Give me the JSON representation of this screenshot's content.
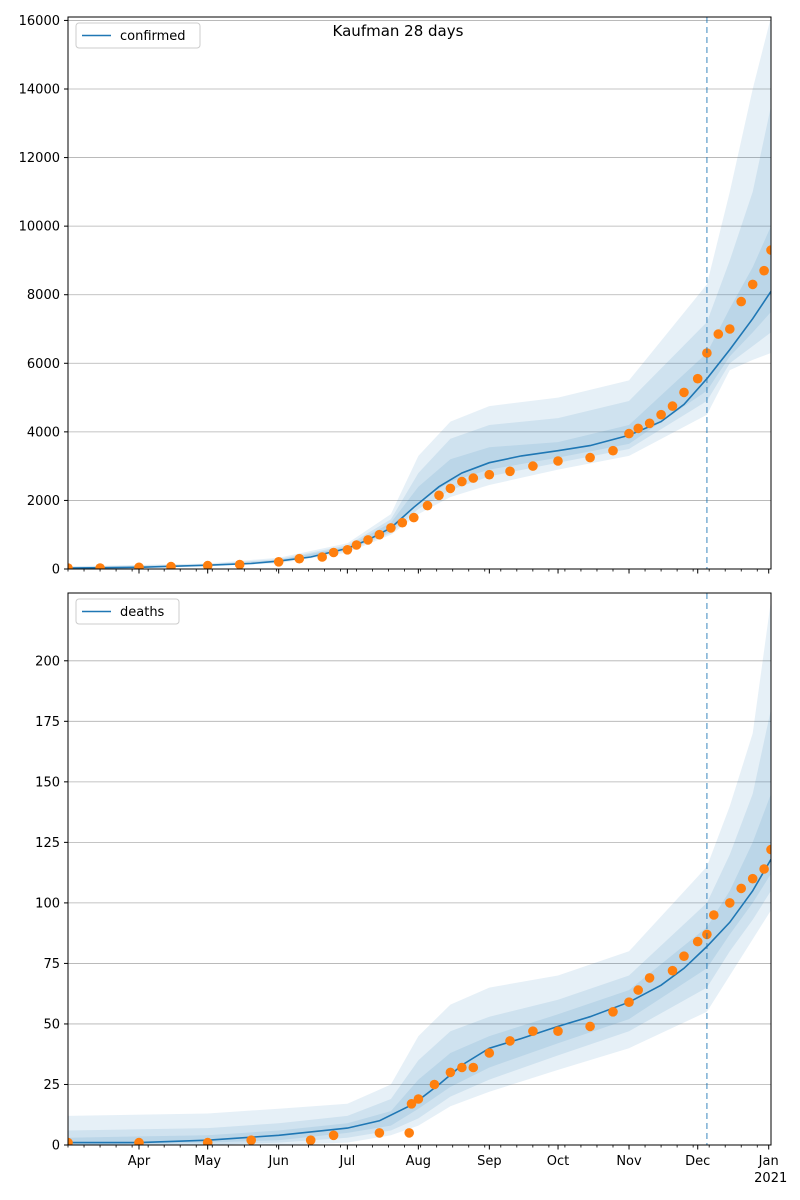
{
  "title": "Kaufman 28 days",
  "colors": {
    "model_line": "#1f77b4",
    "observed": "#ff7f0e",
    "band": "#1f77b4",
    "forecast_divider": "#1f77b4"
  },
  "forecast_start": "2020-12-05",
  "x_axis": {
    "range": [
      "2020-03-01",
      "2021-01-02"
    ],
    "month_ticks": [
      {
        "label": "Apr",
        "date": "2020-04-01"
      },
      {
        "label": "May",
        "date": "2020-05-01"
      },
      {
        "label": "Jun",
        "date": "2020-06-01"
      },
      {
        "label": "Jul",
        "date": "2020-07-01"
      },
      {
        "label": "Aug",
        "date": "2020-08-01"
      },
      {
        "label": "Sep",
        "date": "2020-09-01"
      },
      {
        "label": "Oct",
        "date": "2020-10-01"
      },
      {
        "label": "Nov",
        "date": "2020-11-01"
      },
      {
        "label": "Dec",
        "date": "2020-12-01"
      },
      {
        "label": "Jan",
        "date": "2021-01-01"
      }
    ],
    "year_label": "2021"
  },
  "chart_data": [
    {
      "type": "line",
      "legend": "confirmed",
      "legend_position": "top-left",
      "grid": true,
      "ylim": [
        0,
        16100
      ],
      "yticks": [
        0,
        2000,
        4000,
        6000,
        8000,
        10000,
        12000,
        14000,
        16000
      ],
      "model": {
        "x": [
          "2020-03-01",
          "2020-04-01",
          "2020-05-01",
          "2020-05-20",
          "2020-06-01",
          "2020-06-15",
          "2020-07-01",
          "2020-07-10",
          "2020-07-20",
          "2020-07-30",
          "2020-08-10",
          "2020-08-20",
          "2020-09-01",
          "2020-09-15",
          "2020-10-01",
          "2020-10-15",
          "2020-11-01",
          "2020-11-15",
          "2020-11-25",
          "2020-12-05",
          "2020-12-15",
          "2020-12-25",
          "2021-01-02"
        ],
        "y": [
          30,
          50,
          110,
          160,
          230,
          350,
          600,
          850,
          1200,
          1800,
          2400,
          2800,
          3100,
          3300,
          3450,
          3600,
          3900,
          4300,
          4800,
          5550,
          6400,
          7300,
          8100
        ]
      },
      "bands": [
        {
          "x": [
            "2020-03-01",
            "2020-05-01",
            "2020-06-01",
            "2020-07-01",
            "2020-07-20",
            "2020-08-01",
            "2020-08-15",
            "2020-09-01",
            "2020-10-01",
            "2020-11-01",
            "2020-12-05",
            "2020-12-15",
            "2020-12-25",
            "2021-01-02"
          ],
          "low": [
            0,
            80,
            170,
            480,
            1000,
            1600,
            2100,
            2450,
            2900,
            3300,
            4500,
            5800,
            6100,
            6300
          ],
          "high": [
            80,
            160,
            330,
            750,
            1600,
            3300,
            4300,
            4750,
            5000,
            5500,
            8300,
            11000,
            14000,
            16100
          ]
        },
        {
          "x": [
            "2020-03-01",
            "2020-05-01",
            "2020-06-01",
            "2020-07-01",
            "2020-07-20",
            "2020-08-01",
            "2020-08-15",
            "2020-09-01",
            "2020-10-01",
            "2020-11-01",
            "2020-12-05",
            "2020-12-15",
            "2020-12-25",
            "2021-01-02"
          ],
          "low": [
            10,
            90,
            190,
            530,
            1050,
            1750,
            2300,
            2700,
            3100,
            3500,
            4900,
            6000,
            6500,
            6900
          ],
          "high": [
            60,
            140,
            290,
            690,
            1450,
            2800,
            3800,
            4200,
            4400,
            4900,
            7200,
            9000,
            11000,
            13500
          ]
        },
        {
          "x": [
            "2020-03-01",
            "2020-05-01",
            "2020-06-01",
            "2020-07-01",
            "2020-07-20",
            "2020-08-01",
            "2020-08-15",
            "2020-09-01",
            "2020-10-01",
            "2020-11-01",
            "2020-12-05",
            "2020-12-15",
            "2020-12-25",
            "2021-01-02"
          ],
          "low": [
            20,
            100,
            210,
            570,
            1100,
            1950,
            2550,
            2900,
            3250,
            3650,
            5200,
            6200,
            6900,
            7500
          ],
          "high": [
            45,
            125,
            260,
            650,
            1350,
            2400,
            3200,
            3550,
            3700,
            4200,
            6300,
            7600,
            8800,
            10000
          ]
        }
      ],
      "observed": {
        "x": [
          "2020-03-01",
          "2020-03-15",
          "2020-04-01",
          "2020-04-15",
          "2020-05-01",
          "2020-05-15",
          "2020-06-01",
          "2020-06-10",
          "2020-06-20",
          "2020-06-25",
          "2020-07-01",
          "2020-07-05",
          "2020-07-10",
          "2020-07-15",
          "2020-07-20",
          "2020-07-25",
          "2020-07-30",
          "2020-08-05",
          "2020-08-10",
          "2020-08-15",
          "2020-08-20",
          "2020-08-25",
          "2020-09-01",
          "2020-09-10",
          "2020-09-20",
          "2020-10-01",
          "2020-10-15",
          "2020-10-25",
          "2020-11-01",
          "2020-11-05",
          "2020-11-10",
          "2020-11-15",
          "2020-11-20",
          "2020-11-25",
          "2020-12-01",
          "2020-12-05",
          "2020-12-10",
          "2020-12-15",
          "2020-12-20",
          "2020-12-25",
          "2020-12-30",
          "2021-01-02"
        ],
        "y": [
          30,
          30,
          50,
          70,
          100,
          130,
          210,
          300,
          350,
          480,
          560,
          700,
          850,
          1000,
          1200,
          1350,
          1500,
          1850,
          2150,
          2350,
          2550,
          2650,
          2750,
          2850,
          3000,
          3150,
          3250,
          3450,
          3950,
          4100,
          4250,
          4500,
          4750,
          5150,
          5550,
          6300,
          6850,
          7000,
          7800,
          8300,
          8700,
          9300
        ]
      }
    },
    {
      "type": "line",
      "legend": "deaths",
      "legend_position": "top-left",
      "grid": true,
      "ylim": [
        0,
        228
      ],
      "yticks": [
        0,
        25,
        50,
        75,
        100,
        125,
        150,
        175,
        200
      ],
      "model": {
        "x": [
          "2020-03-01",
          "2020-04-01",
          "2020-05-01",
          "2020-06-01",
          "2020-07-01",
          "2020-07-15",
          "2020-07-30",
          "2020-08-10",
          "2020-08-20",
          "2020-09-01",
          "2020-09-15",
          "2020-10-01",
          "2020-10-15",
          "2020-11-01",
          "2020-11-15",
          "2020-11-25",
          "2020-12-05",
          "2020-12-15",
          "2020-12-25",
          "2021-01-02"
        ],
        "y": [
          1,
          1,
          2,
          4,
          7,
          10,
          17,
          25,
          33,
          40,
          44,
          49,
          53,
          59,
          66,
          73,
          82,
          92,
          105,
          118
        ]
      },
      "bands": [
        {
          "x": [
            "2020-03-01",
            "2020-05-01",
            "2020-06-01",
            "2020-07-01",
            "2020-07-20",
            "2020-08-01",
            "2020-08-15",
            "2020-09-01",
            "2020-10-01",
            "2020-11-01",
            "2020-12-05",
            "2020-12-15",
            "2020-12-25",
            "2021-01-02"
          ],
          "low": [
            0,
            0,
            0,
            1,
            4,
            8,
            16,
            22,
            31,
            40,
            55,
            70,
            85,
            97
          ],
          "high": [
            12,
            13,
            15,
            17,
            25,
            45,
            58,
            65,
            70,
            80,
            115,
            140,
            170,
            225
          ]
        },
        {
          "x": [
            "2020-03-01",
            "2020-05-01",
            "2020-06-01",
            "2020-07-01",
            "2020-07-20",
            "2020-08-01",
            "2020-08-15",
            "2020-09-01",
            "2020-10-01",
            "2020-11-01",
            "2020-12-05",
            "2020-12-15",
            "2020-12-25",
            "2021-01-02"
          ],
          "low": [
            0,
            0,
            1,
            3,
            6,
            11,
            20,
            27,
            37,
            47,
            65,
            80,
            93,
            105
          ],
          "high": [
            6,
            7,
            9,
            12,
            19,
            35,
            47,
            53,
            60,
            70,
            100,
            120,
            145,
            180
          ]
        },
        {
          "x": [
            "2020-03-01",
            "2020-05-01",
            "2020-06-01",
            "2020-07-01",
            "2020-07-20",
            "2020-08-01",
            "2020-08-15",
            "2020-09-01",
            "2020-10-01",
            "2020-11-01",
            "2020-12-05",
            "2020-12-15",
            "2020-12-25",
            "2021-01-02"
          ],
          "low": [
            0,
            1,
            2,
            5,
            8,
            15,
            24,
            32,
            42,
            52,
            73,
            87,
            100,
            112
          ],
          "high": [
            3,
            4,
            6,
            9,
            14,
            27,
            38,
            45,
            54,
            64,
            90,
            105,
            125,
            145
          ]
        }
      ],
      "observed": {
        "x": [
          "2020-03-01",
          "2020-04-01",
          "2020-05-01",
          "2020-05-20",
          "2020-06-15",
          "2020-06-25",
          "2020-07-15",
          "2020-07-28",
          "2020-07-29",
          "2020-08-01",
          "2020-08-08",
          "2020-08-15",
          "2020-08-20",
          "2020-08-25",
          "2020-09-01",
          "2020-09-10",
          "2020-09-20",
          "2020-10-01",
          "2020-10-15",
          "2020-10-25",
          "2020-11-01",
          "2020-11-05",
          "2020-11-10",
          "2020-11-20",
          "2020-11-25",
          "2020-12-01",
          "2020-12-05",
          "2020-12-08",
          "2020-12-15",
          "2020-12-20",
          "2020-12-25",
          "2020-12-30",
          "2021-01-02"
        ],
        "y": [
          1,
          1,
          1,
          2,
          2,
          4,
          5,
          5,
          17,
          19,
          25,
          30,
          32,
          32,
          38,
          43,
          47,
          47,
          49,
          55,
          59,
          64,
          69,
          72,
          78,
          84,
          87,
          95,
          100,
          106,
          110,
          114,
          122
        ]
      }
    }
  ]
}
